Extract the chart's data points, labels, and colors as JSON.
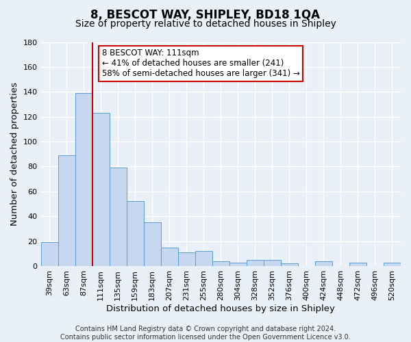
{
  "title": "8, BESCOT WAY, SHIPLEY, BD18 1QA",
  "subtitle": "Size of property relative to detached houses in Shipley",
  "xlabel": "Distribution of detached houses by size in Shipley",
  "ylabel": "Number of detached properties",
  "bar_labels": [
    "39sqm",
    "63sqm",
    "87sqm",
    "111sqm",
    "135sqm",
    "159sqm",
    "183sqm",
    "207sqm",
    "231sqm",
    "255sqm",
    "280sqm",
    "304sqm",
    "328sqm",
    "352sqm",
    "376sqm",
    "400sqm",
    "424sqm",
    "448sqm",
    "472sqm",
    "496sqm",
    "520sqm"
  ],
  "bar_values": [
    19,
    89,
    139,
    123,
    79,
    52,
    35,
    15,
    11,
    12,
    4,
    3,
    5,
    5,
    2,
    0,
    4,
    0,
    3,
    0,
    3
  ],
  "bar_color": "#c5d8f0",
  "bar_edge_color": "#5b9bd5",
  "vline_color": "#cc0000",
  "ylim": [
    0,
    180
  ],
  "yticks": [
    0,
    20,
    40,
    60,
    80,
    100,
    120,
    140,
    160,
    180
  ],
  "annotation_title": "8 BESCOT WAY: 111sqm",
  "annotation_line1": "← 41% of detached houses are smaller (241)",
  "annotation_line2": "58% of semi-detached houses are larger (341) →",
  "annotation_box_color": "#ffffff",
  "annotation_box_edge": "#cc0000",
  "footer_line1": "Contains HM Land Registry data © Crown copyright and database right 2024.",
  "footer_line2": "Contains public sector information licensed under the Open Government Licence v3.0.",
  "background_color": "#eaf0f8",
  "grid_color": "#ffffff",
  "title_fontsize": 12,
  "subtitle_fontsize": 10,
  "axis_label_fontsize": 9.5,
  "tick_fontsize": 8,
  "footer_fontsize": 7
}
